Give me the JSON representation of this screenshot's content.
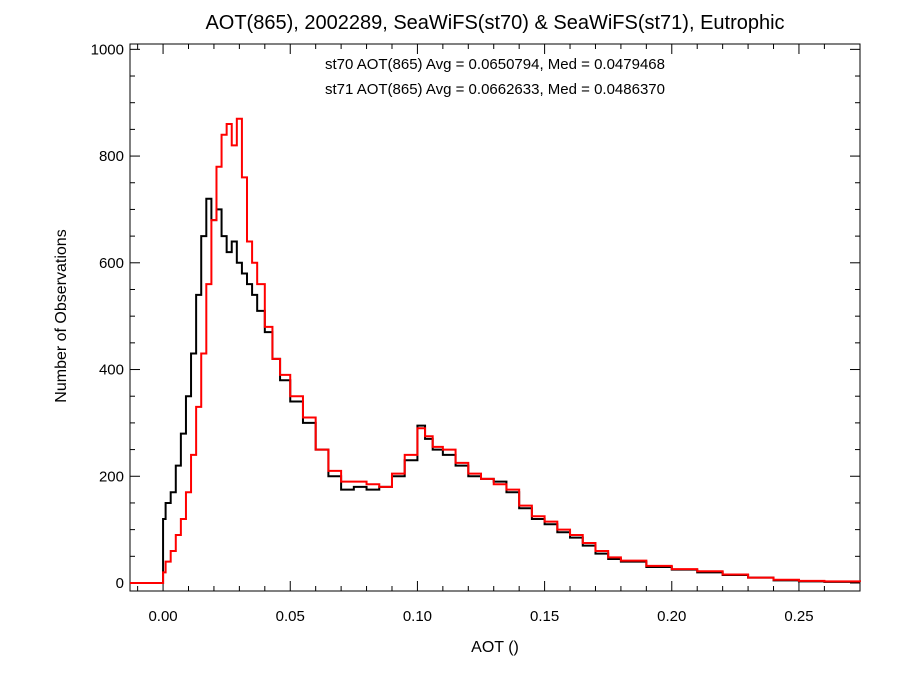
{
  "chart_data": {
    "type": "line",
    "title": "AOT(865), 2002289, SeaWiFS(st70) & SeaWiFS(st71), Eutrophic",
    "xlabel": "AOT ()",
    "ylabel": "Number of Observations",
    "xlim": [
      -0.013,
      0.274
    ],
    "ylim": [
      -15,
      1010
    ],
    "x_ticks": [
      0.0,
      0.05,
      0.1,
      0.15,
      0.2,
      0.25
    ],
    "x_tick_labels": [
      "0.00",
      "0.05",
      "0.10",
      "0.15",
      "0.20",
      "0.25"
    ],
    "y_ticks": [
      0,
      200,
      400,
      600,
      800,
      1000
    ],
    "y_tick_labels": [
      "0",
      "200",
      "400",
      "600",
      "800",
      "1000"
    ],
    "grid": false,
    "annotations": [
      {
        "text": "st70 AOT(865) Avg = 0.0650794, Med = 0.0479468",
        "color": "#000000"
      },
      {
        "text": "st71 AOT(865) Avg = 0.0662633, Med = 0.0486370",
        "color": "#ff0000"
      }
    ],
    "series": [
      {
        "color": "#000000",
        "style": "step",
        "x": [
          -0.013,
          0.0,
          0.001,
          0.003,
          0.005,
          0.007,
          0.009,
          0.011,
          0.013,
          0.015,
          0.017,
          0.019,
          0.021,
          0.023,
          0.025,
          0.027,
          0.029,
          0.031,
          0.033,
          0.035,
          0.037,
          0.04,
          0.043,
          0.046,
          0.05,
          0.055,
          0.06,
          0.065,
          0.07,
          0.075,
          0.08,
          0.085,
          0.09,
          0.095,
          0.1,
          0.103,
          0.106,
          0.11,
          0.115,
          0.12,
          0.125,
          0.13,
          0.135,
          0.14,
          0.145,
          0.15,
          0.155,
          0.16,
          0.165,
          0.17,
          0.175,
          0.18,
          0.19,
          0.2,
          0.21,
          0.22,
          0.23,
          0.24,
          0.25,
          0.26,
          0.274
        ],
        "values": [
          0,
          120,
          150,
          170,
          220,
          280,
          350,
          430,
          540,
          650,
          720,
          680,
          700,
          650,
          620,
          640,
          600,
          580,
          560,
          540,
          510,
          470,
          420,
          380,
          340,
          300,
          250,
          200,
          175,
          180,
          175,
          180,
          200,
          230,
          295,
          270,
          250,
          240,
          220,
          200,
          195,
          190,
          170,
          140,
          120,
          110,
          95,
          85,
          70,
          55,
          45,
          40,
          30,
          25,
          20,
          15,
          10,
          5,
          3,
          2,
          2
        ]
      },
      {
        "color": "#ff0000",
        "style": "step",
        "x": [
          -0.013,
          0.0,
          0.001,
          0.003,
          0.005,
          0.007,
          0.009,
          0.011,
          0.013,
          0.015,
          0.017,
          0.019,
          0.021,
          0.023,
          0.025,
          0.027,
          0.029,
          0.031,
          0.033,
          0.035,
          0.037,
          0.04,
          0.043,
          0.046,
          0.05,
          0.055,
          0.06,
          0.065,
          0.07,
          0.075,
          0.08,
          0.085,
          0.09,
          0.095,
          0.1,
          0.103,
          0.106,
          0.11,
          0.115,
          0.12,
          0.125,
          0.13,
          0.135,
          0.14,
          0.145,
          0.15,
          0.155,
          0.16,
          0.165,
          0.17,
          0.175,
          0.18,
          0.19,
          0.2,
          0.21,
          0.22,
          0.23,
          0.24,
          0.25,
          0.26,
          0.274
        ],
        "values": [
          0,
          20,
          40,
          60,
          90,
          120,
          170,
          240,
          330,
          430,
          560,
          680,
          780,
          840,
          860,
          820,
          870,
          760,
          640,
          600,
          560,
          480,
          420,
          390,
          350,
          310,
          250,
          210,
          190,
          190,
          185,
          180,
          205,
          240,
          290,
          275,
          255,
          250,
          225,
          205,
          195,
          185,
          175,
          145,
          125,
          115,
          100,
          90,
          75,
          60,
          48,
          42,
          32,
          26,
          22,
          16,
          10,
          6,
          4,
          3,
          2
        ]
      }
    ]
  }
}
